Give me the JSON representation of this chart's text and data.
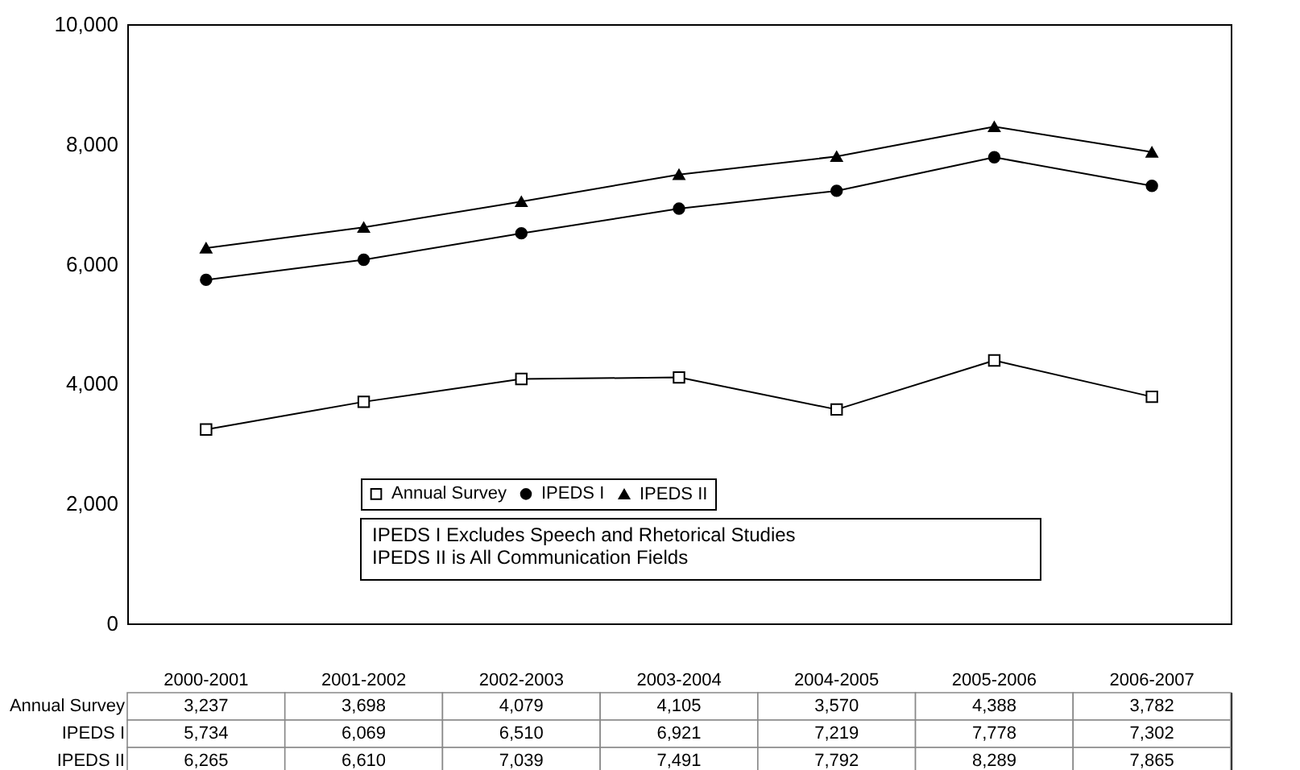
{
  "chart_data": {
    "type": "line",
    "categories": [
      "2000-2001",
      "2001-2002",
      "2002-2003",
      "2003-2004",
      "2004-2005",
      "2005-2006",
      "2006-2007"
    ],
    "series": [
      {
        "name": "Annual Survey",
        "color": "#000000",
        "marker": "square",
        "values": [
          3237,
          3698,
          4079,
          4105,
          3570,
          4388,
          3782
        ],
        "value_labels": [
          "3,237",
          "3,698",
          "4,079",
          "4,105",
          "3,570",
          "4,388",
          "3,782"
        ]
      },
      {
        "name": "IPEDS I",
        "color": "#000000",
        "marker": "circle",
        "values": [
          5734,
          6069,
          6510,
          6921,
          7219,
          7778,
          7302
        ],
        "value_labels": [
          "5,734",
          "6,069",
          "6,510",
          "6,921",
          "7,219",
          "7,778",
          "7,302"
        ]
      },
      {
        "name": "IPEDS II",
        "color": "#000000",
        "marker": "triangle",
        "values": [
          6265,
          6610,
          7039,
          7491,
          7792,
          8289,
          7865
        ],
        "value_labels": [
          "6,265",
          "6,610",
          "7,039",
          "7,491",
          "7,792",
          "8,289",
          "7,865"
        ]
      }
    ],
    "ylim": [
      0,
      10000
    ],
    "yticks": [
      0,
      {
        "value": 2000,
        "label": "2,000"
      },
      {
        "value": 4000,
        "label": "4,000"
      },
      {
        "value": 6000,
        "label": "6,000"
      },
      {
        "value": 8000,
        "label": "8,000"
      },
      {
        "value": 10000,
        "label": "10,000"
      }
    ],
    "grid": false,
    "legend": "bottom",
    "annotations": [
      "IPEDS I Excludes Speech and Rhetorical Studies",
      "IPEDS II is All Communication Fields"
    ]
  }
}
